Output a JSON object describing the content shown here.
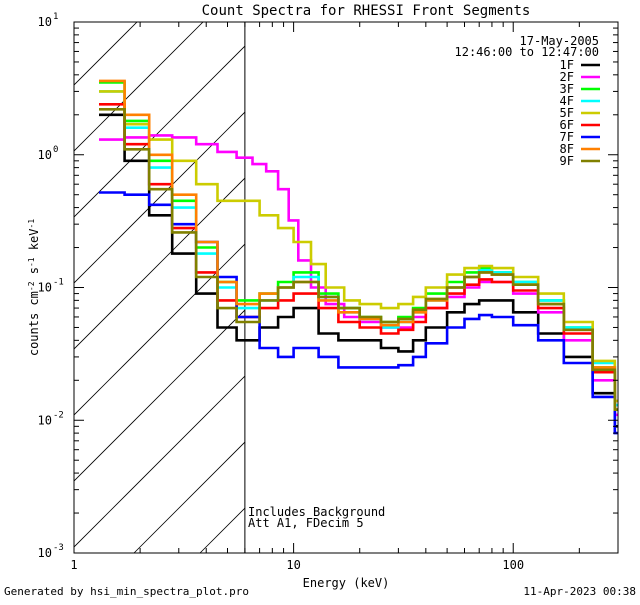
{
  "chart_data": {
    "type": "line",
    "title": "Count Spectra for RHESSI Front Segments",
    "xlabel": "Energy (keV)",
    "ylabel": "counts cm",
    "ylabel_exp1": "-2",
    "ylabel_mid": " s",
    "ylabel_exp2": "-1",
    "ylabel_end": " keV",
    "ylabel_exp3": "-1",
    "xscale": "log",
    "yscale": "log",
    "xlim": [
      1,
      300
    ],
    "ylim": [
      0.001,
      10
    ],
    "x_ticks": [
      {
        "value": 1,
        "label": "1"
      },
      {
        "value": 10,
        "label": "10"
      },
      {
        "value": 100,
        "label": "100"
      }
    ],
    "y_ticks": [
      {
        "value": 0.001,
        "base": "10",
        "exp": "-3"
      },
      {
        "value": 0.01,
        "base": "10",
        "exp": "-2"
      },
      {
        "value": 0.1,
        "base": "10",
        "exp": "-1"
      },
      {
        "value": 1,
        "base": "10",
        "exp": "0"
      },
      {
        "value": 10,
        "base": "10",
        "exp": "1"
      }
    ],
    "hatch_region_keV": [
      1,
      6
    ],
    "date": "17-May-2005",
    "time_range": "12:46:00 to 12:47:00",
    "annotation_line1": "Includes Background",
    "annotation_line2": "Att A1, FDecim 5",
    "series": [
      {
        "name": "1F",
        "color": "#000000",
        "points": [
          [
            1.3,
            2.0
          ],
          [
            1.7,
            0.9
          ],
          [
            2.2,
            0.35
          ],
          [
            2.8,
            0.18
          ],
          [
            3.6,
            0.09
          ],
          [
            4.5,
            0.05
          ],
          [
            5.5,
            0.04
          ],
          [
            7,
            0.05
          ],
          [
            8.5,
            0.06
          ],
          [
            10,
            0.07
          ],
          [
            13,
            0.045
          ],
          [
            16,
            0.04
          ],
          [
            20,
            0.04
          ],
          [
            25,
            0.035
          ],
          [
            30,
            0.033
          ],
          [
            35,
            0.04
          ],
          [
            40,
            0.05
          ],
          [
            50,
            0.065
          ],
          [
            60,
            0.075
          ],
          [
            70,
            0.08
          ],
          [
            80,
            0.08
          ],
          [
            100,
            0.065
          ],
          [
            130,
            0.045
          ],
          [
            170,
            0.03
          ],
          [
            230,
            0.016
          ],
          [
            290,
            0.009
          ]
        ]
      },
      {
        "name": "2F",
        "color": "#ff00ff",
        "points": [
          [
            1.3,
            1.3
          ],
          [
            1.7,
            1.35
          ],
          [
            2.2,
            1.4
          ],
          [
            2.8,
            1.35
          ],
          [
            3.6,
            1.2
          ],
          [
            4.5,
            1.05
          ],
          [
            5.5,
            0.95
          ],
          [
            6.5,
            0.85
          ],
          [
            7.5,
            0.75
          ],
          [
            8.5,
            0.55
          ],
          [
            9.5,
            0.32
          ],
          [
            10.5,
            0.16
          ],
          [
            12,
            0.1
          ],
          [
            14,
            0.075
          ],
          [
            17,
            0.06
          ],
          [
            20,
            0.055
          ],
          [
            25,
            0.05
          ],
          [
            30,
            0.05
          ],
          [
            35,
            0.06
          ],
          [
            40,
            0.07
          ],
          [
            50,
            0.085
          ],
          [
            60,
            0.1
          ],
          [
            70,
            0.11
          ],
          [
            80,
            0.11
          ],
          [
            100,
            0.09
          ],
          [
            130,
            0.065
          ],
          [
            170,
            0.04
          ],
          [
            230,
            0.02
          ],
          [
            290,
            0.011
          ]
        ]
      },
      {
        "name": "3F",
        "color": "#00ff00",
        "points": [
          [
            1.3,
            3.5
          ],
          [
            1.7,
            1.8
          ],
          [
            2.2,
            0.9
          ],
          [
            2.8,
            0.45
          ],
          [
            3.6,
            0.2
          ],
          [
            4.5,
            0.11
          ],
          [
            5.5,
            0.08
          ],
          [
            7,
            0.09
          ],
          [
            8.5,
            0.11
          ],
          [
            10,
            0.13
          ],
          [
            13,
            0.09
          ],
          [
            16,
            0.07
          ],
          [
            20,
            0.06
          ],
          [
            25,
            0.055
          ],
          [
            30,
            0.06
          ],
          [
            35,
            0.07
          ],
          [
            40,
            0.09
          ],
          [
            50,
            0.11
          ],
          [
            60,
            0.13
          ],
          [
            70,
            0.14
          ],
          [
            80,
            0.13
          ],
          [
            100,
            0.11
          ],
          [
            130,
            0.08
          ],
          [
            170,
            0.05
          ],
          [
            230,
            0.025
          ],
          [
            290,
            0.012
          ]
        ]
      },
      {
        "name": "4F",
        "color": "#00ffff",
        "points": [
          [
            1.3,
            3.0
          ],
          [
            1.7,
            1.6
          ],
          [
            2.2,
            0.8
          ],
          [
            2.8,
            0.4
          ],
          [
            3.6,
            0.18
          ],
          [
            4.5,
            0.1
          ],
          [
            5.5,
            0.07
          ],
          [
            7,
            0.08
          ],
          [
            8.5,
            0.1
          ],
          [
            10,
            0.12
          ],
          [
            13,
            0.085
          ],
          [
            16,
            0.065
          ],
          [
            20,
            0.058
          ],
          [
            25,
            0.05
          ],
          [
            30,
            0.055
          ],
          [
            35,
            0.065
          ],
          [
            40,
            0.08
          ],
          [
            50,
            0.1
          ],
          [
            60,
            0.12
          ],
          [
            70,
            0.135
          ],
          [
            80,
            0.13
          ],
          [
            100,
            0.11
          ],
          [
            130,
            0.08
          ],
          [
            170,
            0.05
          ],
          [
            230,
            0.027
          ],
          [
            290,
            0.013
          ]
        ]
      },
      {
        "name": "5F",
        "color": "#cccc00",
        "points": [
          [
            1.3,
            3.0
          ],
          [
            1.7,
            1.7
          ],
          [
            2.2,
            1.3
          ],
          [
            2.8,
            0.9
          ],
          [
            3.6,
            0.6
          ],
          [
            4.5,
            0.45
          ],
          [
            5.5,
            0.45
          ],
          [
            7,
            0.35
          ],
          [
            8.5,
            0.28
          ],
          [
            10,
            0.22
          ],
          [
            12,
            0.15
          ],
          [
            14,
            0.1
          ],
          [
            17,
            0.08
          ],
          [
            20,
            0.075
          ],
          [
            25,
            0.07
          ],
          [
            30,
            0.075
          ],
          [
            35,
            0.085
          ],
          [
            40,
            0.1
          ],
          [
            50,
            0.125
          ],
          [
            60,
            0.14
          ],
          [
            70,
            0.145
          ],
          [
            80,
            0.14
          ],
          [
            100,
            0.12
          ],
          [
            130,
            0.09
          ],
          [
            170,
            0.055
          ],
          [
            230,
            0.028
          ],
          [
            290,
            0.014
          ]
        ]
      },
      {
        "name": "6F",
        "color": "#ff0000",
        "points": [
          [
            1.3,
            2.4
          ],
          [
            1.7,
            1.2
          ],
          [
            2.2,
            0.6
          ],
          [
            2.8,
            0.28
          ],
          [
            3.6,
            0.13
          ],
          [
            4.5,
            0.08
          ],
          [
            5.5,
            0.06
          ],
          [
            7,
            0.07
          ],
          [
            8.5,
            0.08
          ],
          [
            10,
            0.09
          ],
          [
            13,
            0.07
          ],
          [
            16,
            0.055
          ],
          [
            20,
            0.05
          ],
          [
            25,
            0.045
          ],
          [
            30,
            0.048
          ],
          [
            35,
            0.055
          ],
          [
            40,
            0.07
          ],
          [
            50,
            0.09
          ],
          [
            60,
            0.105
          ],
          [
            70,
            0.115
          ],
          [
            80,
            0.11
          ],
          [
            100,
            0.095
          ],
          [
            130,
            0.07
          ],
          [
            170,
            0.045
          ],
          [
            230,
            0.023
          ],
          [
            290,
            0.012
          ]
        ]
      },
      {
        "name": "7F",
        "color": "#0000ff",
        "points": [
          [
            1.3,
            0.52
          ],
          [
            1.7,
            0.5
          ],
          [
            2.2,
            0.42
          ],
          [
            2.8,
            0.3
          ],
          [
            3.6,
            0.22
          ],
          [
            4.5,
            0.12
          ],
          [
            5.5,
            0.06
          ],
          [
            7,
            0.035
          ],
          [
            8.5,
            0.03
          ],
          [
            10,
            0.035
          ],
          [
            13,
            0.03
          ],
          [
            16,
            0.025
          ],
          [
            20,
            0.025
          ],
          [
            25,
            0.025
          ],
          [
            30,
            0.026
          ],
          [
            35,
            0.03
          ],
          [
            40,
            0.038
          ],
          [
            50,
            0.05
          ],
          [
            60,
            0.058
          ],
          [
            70,
            0.062
          ],
          [
            80,
            0.06
          ],
          [
            100,
            0.052
          ],
          [
            130,
            0.04
          ],
          [
            170,
            0.027
          ],
          [
            230,
            0.015
          ],
          [
            290,
            0.008
          ]
        ]
      },
      {
        "name": "8F",
        "color": "#ff8000",
        "points": [
          [
            1.3,
            3.6
          ],
          [
            1.7,
            2.0
          ],
          [
            2.2,
            1.0
          ],
          [
            2.8,
            0.5
          ],
          [
            3.6,
            0.22
          ],
          [
            4.5,
            0.11
          ],
          [
            5.5,
            0.075
          ],
          [
            7,
            0.09
          ],
          [
            8.5,
            0.1
          ],
          [
            10,
            0.11
          ],
          [
            13,
            0.08
          ],
          [
            16,
            0.065
          ],
          [
            20,
            0.058
          ],
          [
            25,
            0.052
          ],
          [
            30,
            0.055
          ],
          [
            35,
            0.065
          ],
          [
            40,
            0.08
          ],
          [
            50,
            0.1
          ],
          [
            60,
            0.12
          ],
          [
            70,
            0.13
          ],
          [
            80,
            0.125
          ],
          [
            100,
            0.105
          ],
          [
            130,
            0.075
          ],
          [
            170,
            0.048
          ],
          [
            230,
            0.025
          ],
          [
            290,
            0.012
          ]
        ]
      },
      {
        "name": "9F",
        "color": "#808000",
        "points": [
          [
            1.3,
            2.2
          ],
          [
            1.7,
            1.1
          ],
          [
            2.2,
            0.55
          ],
          [
            2.8,
            0.26
          ],
          [
            3.6,
            0.12
          ],
          [
            4.5,
            0.07
          ],
          [
            5.5,
            0.055
          ],
          [
            7,
            0.08
          ],
          [
            8.5,
            0.1
          ],
          [
            10,
            0.11
          ],
          [
            13,
            0.085
          ],
          [
            16,
            0.07
          ],
          [
            20,
            0.06
          ],
          [
            25,
            0.055
          ],
          [
            30,
            0.058
          ],
          [
            35,
            0.068
          ],
          [
            40,
            0.082
          ],
          [
            50,
            0.1
          ],
          [
            60,
            0.12
          ],
          [
            70,
            0.13
          ],
          [
            80,
            0.125
          ],
          [
            100,
            0.105
          ],
          [
            130,
            0.075
          ],
          [
            170,
            0.048
          ],
          [
            230,
            0.024
          ],
          [
            290,
            0.012
          ]
        ]
      }
    ]
  },
  "footer": {
    "generated_by": "Generated by hsi_min_spectra_plot.pro",
    "timestamp": "11-Apr-2023 00:38"
  }
}
